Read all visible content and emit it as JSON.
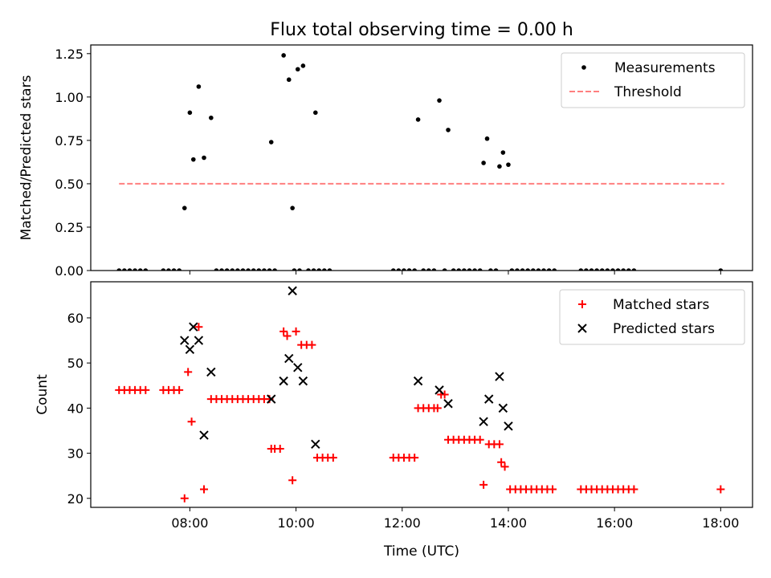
{
  "title": "Flux total observing time = 0.00 h",
  "colors": {
    "measurement": "#000000",
    "threshold": "#ff7f7f",
    "matched": "#ff0000",
    "predicted": "#000000"
  },
  "chart_data": [
    {
      "type": "scatter",
      "title": "Flux total observing time = 0.00 h",
      "ylabel": "Matched/Predicted stars",
      "xlim": [
        "06:08",
        "18:36"
      ],
      "ylim": [
        0,
        1.3
      ],
      "xticks": [
        "08:00",
        "10:00",
        "12:00",
        "14:00",
        "16:00",
        "18:00"
      ],
      "yticks": [
        "0.00",
        "0.25",
        "0.50",
        "0.75",
        "1.00",
        "1.25"
      ],
      "legend": {
        "position": "top-right",
        "entries": [
          "Measurements",
          "Threshold"
        ]
      },
      "series": [
        {
          "name": "Measurements",
          "marker": "dot",
          "points": [
            [
              "06:40",
              0
            ],
            [
              "06:46",
              0
            ],
            [
              "06:52",
              0
            ],
            [
              "06:58",
              0
            ],
            [
              "07:04",
              0
            ],
            [
              "07:10",
              0
            ],
            [
              "07:30",
              0
            ],
            [
              "07:36",
              0
            ],
            [
              "07:42",
              0
            ],
            [
              "07:48",
              0
            ],
            [
              "07:54",
              0.36
            ],
            [
              "08:00",
              0.91
            ],
            [
              "08:04",
              0.64
            ],
            [
              "08:10",
              1.06
            ],
            [
              "08:16",
              0.65
            ],
            [
              "08:24",
              0.88
            ],
            [
              "08:30",
              0
            ],
            [
              "08:36",
              0
            ],
            [
              "08:42",
              0
            ],
            [
              "08:48",
              0
            ],
            [
              "08:54",
              0
            ],
            [
              "09:00",
              0
            ],
            [
              "09:06",
              0
            ],
            [
              "09:12",
              0
            ],
            [
              "09:18",
              0
            ],
            [
              "09:24",
              0
            ],
            [
              "09:30",
              0
            ],
            [
              "09:36",
              0
            ],
            [
              "09:32",
              0.74
            ],
            [
              "09:46",
              1.24
            ],
            [
              "09:52",
              1.1
            ],
            [
              "09:56",
              0.36
            ],
            [
              "10:02",
              1.16
            ],
            [
              "10:08",
              1.18
            ],
            [
              "10:22",
              0.91
            ],
            [
              "09:58",
              0
            ],
            [
              "10:04",
              0
            ],
            [
              "10:14",
              0
            ],
            [
              "10:20",
              0
            ],
            [
              "10:26",
              0
            ],
            [
              "10:32",
              0
            ],
            [
              "10:38",
              0
            ],
            [
              "11:50",
              0
            ],
            [
              "11:56",
              0
            ],
            [
              "12:02",
              0
            ],
            [
              "12:08",
              0
            ],
            [
              "12:14",
              0
            ],
            [
              "12:18",
              0.87
            ],
            [
              "12:42",
              0.98
            ],
            [
              "12:52",
              0.81
            ],
            [
              "12:24",
              0
            ],
            [
              "12:30",
              0
            ],
            [
              "12:36",
              0
            ],
            [
              "12:48",
              0
            ],
            [
              "12:58",
              0
            ],
            [
              "13:04",
              0
            ],
            [
              "13:10",
              0
            ],
            [
              "13:16",
              0
            ],
            [
              "13:22",
              0
            ],
            [
              "13:28",
              0
            ],
            [
              "13:32",
              0.62
            ],
            [
              "13:36",
              0.76
            ],
            [
              "13:50",
              0.6
            ],
            [
              "13:54",
              0.68
            ],
            [
              "14:00",
              0.61
            ],
            [
              "13:40",
              0
            ],
            [
              "13:46",
              0
            ],
            [
              "14:04",
              0
            ],
            [
              "14:10",
              0
            ],
            [
              "14:16",
              0
            ],
            [
              "14:22",
              0
            ],
            [
              "14:28",
              0
            ],
            [
              "14:34",
              0
            ],
            [
              "14:40",
              0
            ],
            [
              "14:46",
              0
            ],
            [
              "14:52",
              0
            ],
            [
              "15:22",
              0
            ],
            [
              "15:28",
              0
            ],
            [
              "15:34",
              0
            ],
            [
              "15:40",
              0
            ],
            [
              "15:46",
              0
            ],
            [
              "15:52",
              0
            ],
            [
              "15:58",
              0
            ],
            [
              "16:04",
              0
            ],
            [
              "16:10",
              0
            ],
            [
              "16:16",
              0
            ],
            [
              "16:22",
              0
            ],
            [
              "18:00",
              0
            ]
          ]
        },
        {
          "name": "Threshold",
          "style": "dashed",
          "points": [
            [
              "06:40",
              0.5
            ],
            [
              "18:04",
              0.5
            ]
          ]
        }
      ]
    },
    {
      "type": "scatter",
      "xlabel": "Time (UTC)",
      "ylabel": "Count",
      "xlim": [
        "06:08",
        "18:36"
      ],
      "ylim": [
        18,
        68
      ],
      "xticks": [
        "08:00",
        "10:00",
        "12:00",
        "14:00",
        "16:00",
        "18:00"
      ],
      "yticks": [
        "20",
        "30",
        "40",
        "50",
        "60"
      ],
      "legend": {
        "position": "top-right",
        "entries": [
          "Matched stars",
          "Predicted stars"
        ]
      },
      "series": [
        {
          "name": "Matched stars",
          "marker": "plus",
          "points": [
            [
              "06:40",
              44
            ],
            [
              "06:46",
              44
            ],
            [
              "06:52",
              44
            ],
            [
              "06:58",
              44
            ],
            [
              "07:04",
              44
            ],
            [
              "07:10",
              44
            ],
            [
              "07:30",
              44
            ],
            [
              "07:36",
              44
            ],
            [
              "07:42",
              44
            ],
            [
              "07:48",
              44
            ],
            [
              "07:54",
              20
            ],
            [
              "07:58",
              48
            ],
            [
              "08:02",
              37
            ],
            [
              "08:10",
              58
            ],
            [
              "08:16",
              22
            ],
            [
              "08:24",
              42
            ],
            [
              "08:30",
              42
            ],
            [
              "08:36",
              42
            ],
            [
              "08:42",
              42
            ],
            [
              "08:48",
              42
            ],
            [
              "08:54",
              42
            ],
            [
              "09:00",
              42
            ],
            [
              "09:06",
              42
            ],
            [
              "09:12",
              42
            ],
            [
              "09:18",
              42
            ],
            [
              "09:24",
              42
            ],
            [
              "09:30",
              42
            ],
            [
              "09:32",
              31
            ],
            [
              "09:36",
              31
            ],
            [
              "09:42",
              31
            ],
            [
              "09:46",
              57
            ],
            [
              "09:50",
              56
            ],
            [
              "09:56",
              24
            ],
            [
              "10:00",
              57
            ],
            [
              "10:06",
              54
            ],
            [
              "10:12",
              54
            ],
            [
              "10:18",
              54
            ],
            [
              "10:24",
              29
            ],
            [
              "10:30",
              29
            ],
            [
              "10:36",
              29
            ],
            [
              "10:42",
              29
            ],
            [
              "11:50",
              29
            ],
            [
              "11:56",
              29
            ],
            [
              "12:02",
              29
            ],
            [
              "12:08",
              29
            ],
            [
              "12:14",
              29
            ],
            [
              "12:18",
              40
            ],
            [
              "12:24",
              40
            ],
            [
              "12:30",
              40
            ],
            [
              "12:36",
              40
            ],
            [
              "12:40",
              40
            ],
            [
              "12:44",
              43
            ],
            [
              "12:48",
              43
            ],
            [
              "12:52",
              33
            ],
            [
              "12:58",
              33
            ],
            [
              "13:04",
              33
            ],
            [
              "13:10",
              33
            ],
            [
              "13:16",
              33
            ],
            [
              "13:22",
              33
            ],
            [
              "13:28",
              33
            ],
            [
              "13:32",
              23
            ],
            [
              "13:38",
              32
            ],
            [
              "13:44",
              32
            ],
            [
              "13:50",
              32
            ],
            [
              "13:52",
              28
            ],
            [
              "13:56",
              27
            ],
            [
              "14:02",
              22
            ],
            [
              "14:08",
              22
            ],
            [
              "14:14",
              22
            ],
            [
              "14:20",
              22
            ],
            [
              "14:26",
              22
            ],
            [
              "14:32",
              22
            ],
            [
              "14:38",
              22
            ],
            [
              "14:44",
              22
            ],
            [
              "14:50",
              22
            ],
            [
              "15:22",
              22
            ],
            [
              "15:28",
              22
            ],
            [
              "15:34",
              22
            ],
            [
              "15:40",
              22
            ],
            [
              "15:46",
              22
            ],
            [
              "15:52",
              22
            ],
            [
              "15:58",
              22
            ],
            [
              "16:04",
              22
            ],
            [
              "16:10",
              22
            ],
            [
              "16:16",
              22
            ],
            [
              "16:22",
              22
            ],
            [
              "18:00",
              22
            ]
          ]
        },
        {
          "name": "Predicted stars",
          "marker": "x",
          "points": [
            [
              "07:54",
              55
            ],
            [
              "08:00",
              53
            ],
            [
              "08:04",
              58
            ],
            [
              "08:10",
              55
            ],
            [
              "08:16",
              34
            ],
            [
              "08:24",
              48
            ],
            [
              "09:32",
              42
            ],
            [
              "09:46",
              46
            ],
            [
              "09:52",
              51
            ],
            [
              "09:56",
              66
            ],
            [
              "10:02",
              49
            ],
            [
              "10:08",
              46
            ],
            [
              "10:22",
              32
            ],
            [
              "12:18",
              46
            ],
            [
              "12:42",
              44
            ],
            [
              "12:52",
              41
            ],
            [
              "13:32",
              37
            ],
            [
              "13:38",
              42
            ],
            [
              "13:50",
              47
            ],
            [
              "13:54",
              40
            ],
            [
              "14:00",
              36
            ]
          ]
        }
      ]
    }
  ]
}
